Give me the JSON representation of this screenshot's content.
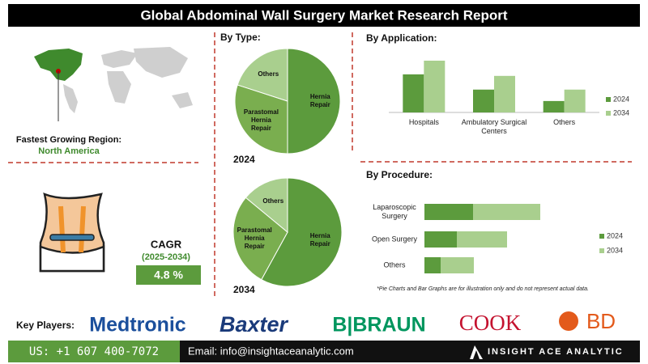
{
  "header": {
    "title": "Global Abdominal Wall Surgery Market Research Report"
  },
  "region": {
    "label": "Fastest Growing Region:",
    "value": "North America"
  },
  "cagr": {
    "label": "CAGR",
    "period": "(2025-2034)",
    "value": "4.8 %"
  },
  "chart_data": [
    {
      "type": "pie",
      "title": "By Type:",
      "subtitle": "2024",
      "categories": [
        "Hernia Repair",
        "Parastomal Hernia Repair",
        "Others"
      ],
      "values": [
        50,
        30,
        20
      ],
      "colors": [
        "#5c9b3d",
        "#7aae4f",
        "#a9cf8e"
      ]
    },
    {
      "type": "pie",
      "subtitle": "2034",
      "categories": [
        "Hernia Repair",
        "Parastomal Hernia Repair",
        "Others"
      ],
      "values": [
        58,
        28,
        14
      ],
      "colors": [
        "#5c9b3d",
        "#7aae4f",
        "#a9cf8e"
      ]
    },
    {
      "type": "bar",
      "title": "By Application:",
      "categories": [
        "Hospitals",
        "Ambulatory Surgical Centers",
        "Others"
      ],
      "series": [
        {
          "name": "2024",
          "color": "#5c9b3d",
          "values": [
            50,
            30,
            15
          ]
        },
        {
          "name": "2034",
          "color": "#a9cf8e",
          "values": [
            68,
            48,
            30
          ]
        }
      ],
      "legend": "right"
    },
    {
      "type": "stacked-hbar",
      "title": "By Procedure:",
      "categories": [
        "Laparoscopic Surgery",
        "Open Surgery",
        "Others"
      ],
      "series": [
        {
          "name": "2024",
          "color": "#5c9b3d",
          "values": [
            60,
            40,
            20
          ]
        },
        {
          "name": "2034",
          "color": "#a9cf8e",
          "values": [
            83,
            62,
            41
          ]
        }
      ],
      "legend": "right"
    }
  ],
  "note": "*Pie Charts and Bar Graphs are for illustration only and do not represent actual data.",
  "key_players": {
    "label": "Key Players:",
    "companies": [
      "Medtronic",
      "Baxter",
      "B|BRAUN",
      "COOK",
      "BD"
    ]
  },
  "footer": {
    "phone": "US: +1 607 400-7072",
    "email": "Email: info@insightaceanalytic.com",
    "brand": "INSIGHT ACE ANALYTIC"
  }
}
